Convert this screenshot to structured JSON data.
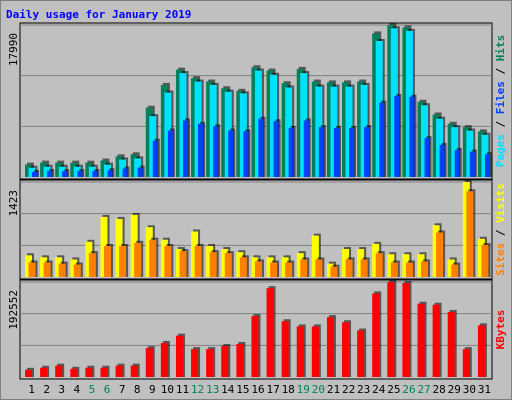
{
  "chart_data": [
    {
      "type": "bar",
      "title": "Daily usage for January 2019",
      "legend_separator": " / ",
      "ylim": [
        0,
        17990
      ],
      "yticks": [
        17990
      ],
      "series": [
        {
          "name": "Hits",
          "color": "#00805c",
          "values": [
            1470,
            1700,
            1700,
            1700,
            1700,
            1950,
            2440,
            2690,
            8200,
            10900,
            12700,
            11700,
            11300,
            10500,
            10200,
            13000,
            12600,
            11100,
            12800,
            11300,
            11200,
            11200,
            11300,
            17000,
            17990,
            17700,
            8900,
            7400,
            6300,
            5900,
            5400
          ]
        },
        {
          "name": "Files",
          "color": "#0040ff",
          "values": [
            600,
            700,
            700,
            700,
            700,
            800,
            1000,
            1100,
            4300,
            5500,
            6700,
            6300,
            6000,
            5500,
            5400,
            6900,
            6600,
            5800,
            6700,
            5900,
            5800,
            5800,
            5900,
            8800,
            9600,
            9500,
            4600,
            3800,
            3200,
            3000,
            2700
          ]
        },
        {
          "name": "Pages",
          "color": "#00e0ff",
          "values": [
            1100,
            1220,
            1220,
            1220,
            1220,
            1460,
            2070,
            2200,
            7200,
            10000,
            12300,
            11300,
            10900,
            10100,
            9900,
            12600,
            12100,
            10600,
            12300,
            10700,
            10700,
            10700,
            10900,
            16100,
            17600,
            17300,
            8500,
            6900,
            5900,
            5500,
            5000
          ]
        }
      ]
    },
    {
      "type": "bar",
      "legend_separator": " / ",
      "ylim": [
        0,
        1423
      ],
      "yticks": [
        1423
      ],
      "series": [
        {
          "name": "Visits",
          "color": "#ffff00",
          "values": [
            325,
            295,
            295,
            263,
            527,
            900,
            870,
            930,
            745,
            558,
            419,
            682,
            465,
            419,
            372,
            295,
            295,
            295,
            357,
            620,
            200,
            419,
            419,
            496,
            341,
            341,
            341,
            775,
            263,
            1423,
            573
          ]
        },
        {
          "name": "Sites",
          "color": "#ff8000",
          "values": [
            217,
            217,
            200,
            186,
            357,
            465,
            465,
            512,
            558,
            465,
            388,
            465,
            372,
            357,
            295,
            233,
            217,
            217,
            263,
            263,
            155,
            263,
            263,
            357,
            217,
            217,
            233,
            667,
            186,
            1285,
            480
          ]
        }
      ]
    },
    {
      "type": "bar",
      "ylim": [
        0,
        192552
      ],
      "yticks": [
        192552
      ],
      "categories": [
        "1",
        "2",
        "3",
        "4",
        "5",
        "6",
        "7",
        "8",
        "9",
        "10",
        "11",
        "12",
        "13",
        "14",
        "15",
        "16",
        "17",
        "18",
        "19",
        "20",
        "21",
        "22",
        "23",
        "24",
        "25",
        "26",
        "27",
        "28",
        "29",
        "30",
        "31"
      ],
      "category_colors": [
        "#000000",
        "#000000",
        "#000000",
        "#000000",
        "#00805c",
        "#00805c",
        "#000000",
        "#000000",
        "#000000",
        "#000000",
        "#000000",
        "#00805c",
        "#00805c",
        "#000000",
        "#000000",
        "#000000",
        "#000000",
        "#000000",
        "#00805c",
        "#00805c",
        "#000000",
        "#000000",
        "#000000",
        "#000000",
        "#000000",
        "#00805c",
        "#00805c",
        "#000000",
        "#000000",
        "#000000",
        "#000000"
      ],
      "series": [
        {
          "name": "KBytes",
          "color": "#ff0000",
          "values": [
            14650,
            18800,
            23000,
            16700,
            18800,
            18800,
            23000,
            23000,
            58600,
            69000,
            83700,
            56500,
            56500,
            62800,
            67000,
            123500,
            180000,
            113000,
            102500,
            102500,
            121400,
            111000,
            94200,
            169500,
            192552,
            190500,
            148600,
            146500,
            131900,
            56500,
            104700
          ]
        }
      ]
    }
  ]
}
